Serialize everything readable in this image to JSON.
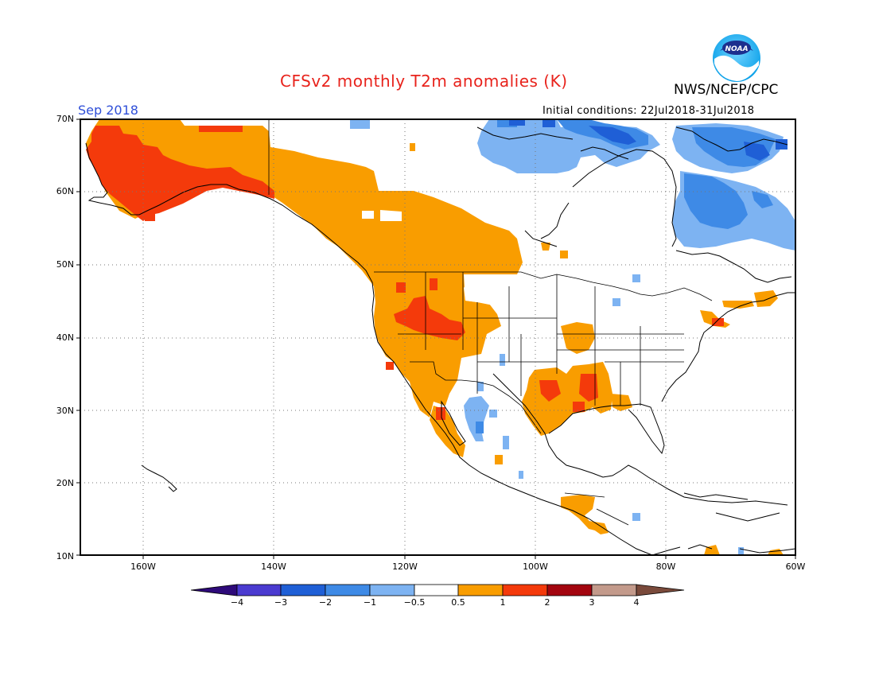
{
  "header": {
    "title": "CFSv2 monthly T2m anomalies (K)",
    "agency": "NWS/NCEP/CPC",
    "logo_text": "NOAA",
    "month": "Sep 2018",
    "initial_conditions": "Initial conditions: 22Jul2018-31Jul2018"
  },
  "map": {
    "lat_labels": [
      "70N",
      "60N",
      "50N",
      "40N",
      "30N",
      "20N",
      "10N"
    ],
    "lon_labels": [
      "160W",
      "140W",
      "120W",
      "100W",
      "80W",
      "60W"
    ]
  },
  "colorbar": {
    "labels": [
      "−4",
      "−3",
      "−2",
      "−1",
      "−0.5",
      "0.5",
      "1",
      "2",
      "3",
      "4"
    ],
    "colors": [
      "#2e0a7a",
      "#4b3bd0",
      "#1f5fd6",
      "#3e8ae6",
      "#7db3f2",
      "#ffffff",
      "#f99d00",
      "#f43a0b",
      "#a3050f",
      "#c39a8b",
      "#7a4a3b"
    ]
  },
  "anomaly_colors": {
    "light_warm": "#f99d00",
    "strong_warm": "#f43a0b",
    "light_cool": "#7db3f2",
    "moderate_cool": "#3e8ae6",
    "strong_cool": "#1f5fd6"
  }
}
